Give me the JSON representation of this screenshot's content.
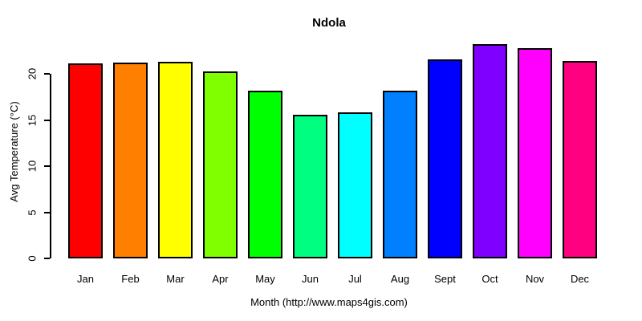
{
  "title": "Ndola",
  "chart_data": {
    "type": "bar",
    "title": "Ndola",
    "xlabel": "Month (http://www.maps4gis.com)",
    "ylabel": "Avg Temperature (°C)",
    "categories": [
      "Jan",
      "Feb",
      "Mar",
      "Apr",
      "May",
      "Jun",
      "Jul",
      "Aug",
      "Sept",
      "Oct",
      "Nov",
      "Dec"
    ],
    "values": [
      21.1,
      21.2,
      21.3,
      20.3,
      18.2,
      15.6,
      15.8,
      18.2,
      21.6,
      23.2,
      22.8,
      21.4
    ],
    "bar_colors": [
      "#FF0000",
      "#FF8000",
      "#FFFF00",
      "#80FF00",
      "#00FF00",
      "#00FF80",
      "#00FFFF",
      "#0080FF",
      "#0000FF",
      "#8000FF",
      "#FF00FF",
      "#FF0080"
    ],
    "ylim": [
      0,
      24
    ],
    "y_ticks": [
      0,
      5,
      10,
      15,
      20
    ],
    "grid": false,
    "legend": "none",
    "bar_border_color": "#000000",
    "background_color": "#FFFFFF",
    "axis_color": "#000000",
    "text_color": "#000000"
  }
}
